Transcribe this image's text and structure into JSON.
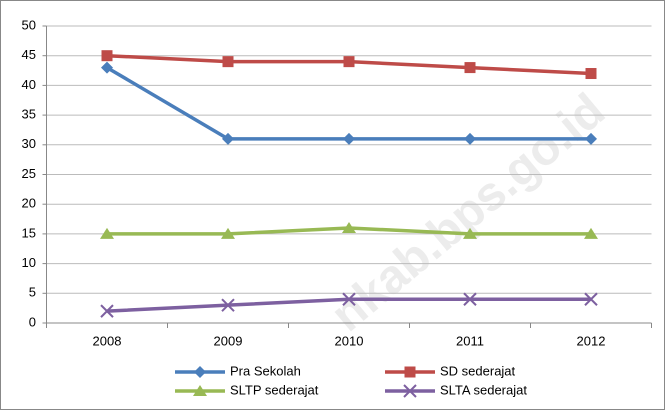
{
  "chart_data": {
    "type": "line",
    "categories": [
      "2008",
      "2009",
      "2010",
      "2011",
      "2012"
    ],
    "series": [
      {
        "name": "Pra Sekolah",
        "color": "#4a7ebb",
        "marker": "diamond",
        "values": [
          43,
          31,
          31,
          31,
          31
        ]
      },
      {
        "name": "SD sederajat",
        "color": "#be4b48",
        "marker": "square",
        "values": [
          45,
          44,
          44,
          43,
          42
        ]
      },
      {
        "name": "SLTP sederajat",
        "color": "#98b954",
        "marker": "triangle",
        "values": [
          15,
          15,
          16,
          15,
          15
        ]
      },
      {
        "name": "SLTA sederajat",
        "color": "#7d60a0",
        "marker": "x",
        "values": [
          2,
          3,
          4,
          4,
          4
        ]
      }
    ],
    "ylim": [
      0,
      50
    ],
    "yticks": [
      0,
      5,
      10,
      15,
      20,
      25,
      30,
      35,
      40,
      45,
      50
    ],
    "grid": true,
    "legend": "bottom",
    "watermark": "nkab.bps.go.id"
  }
}
